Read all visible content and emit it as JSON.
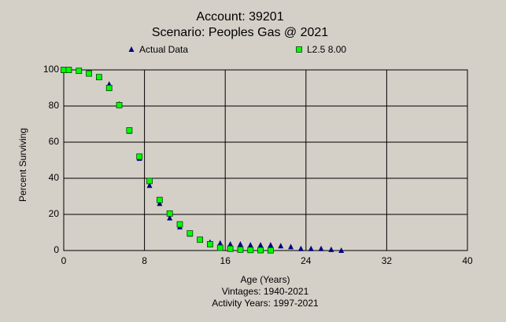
{
  "chart_data": {
    "type": "scatter",
    "title": "Account: 39201",
    "subtitle": "Scenario: Peoples Gas @ 2021",
    "x_label": "Age (Years)",
    "y_label": "Percent Surviving",
    "annotations": [
      "Vintages: 1940-2021",
      "Activity Years: 1997-2021"
    ],
    "xlim": [
      0,
      40
    ],
    "xticks": [
      0,
      8,
      16,
      24,
      32,
      40
    ],
    "ylim": [
      0,
      100
    ],
    "yticks": [
      0,
      20,
      40,
      60,
      80,
      100
    ],
    "grid": true,
    "series": [
      {
        "name": "Actual Data",
        "color": "#000080",
        "marker": "triangle",
        "x": [
          0,
          0.5,
          1.5,
          2.5,
          3.5,
          4.5,
          5.5,
          6.5,
          7.5,
          8.5,
          9.5,
          10.5,
          11.5,
          12.5,
          13.5,
          14.5,
          15.5,
          16.5,
          17.5,
          18.5,
          19.5,
          20.5,
          21.5,
          22.5,
          23.5,
          24.5,
          25.5,
          26.5,
          27.5
        ],
        "values": [
          100,
          100,
          99.5,
          98.5,
          96,
          92,
          81,
          66,
          51,
          36,
          26,
          18,
          13,
          9,
          6,
          4.5,
          4,
          3.5,
          3.5,
          3,
          3,
          3,
          2.5,
          2,
          1,
          1,
          1,
          0.5,
          0
        ]
      },
      {
        "name": "L2.5 8.00",
        "color": "#00ff00",
        "marker": "square",
        "x": [
          0,
          0.5,
          1.5,
          2.5,
          3.5,
          4.5,
          5.5,
          6.5,
          7.5,
          8.5,
          9.5,
          10.5,
          11.5,
          12.5,
          13.5,
          14.5,
          15.5,
          16.5,
          17.5,
          18.5,
          19.5,
          20.5
        ],
        "values": [
          100,
          100,
          99.5,
          98,
          96,
          90,
          80.5,
          66.5,
          52,
          38.5,
          28,
          20.5,
          14.5,
          9.5,
          6,
          3.5,
          1.5,
          1,
          0.5,
          0.3,
          0.2,
          0.1
        ]
      }
    ]
  }
}
